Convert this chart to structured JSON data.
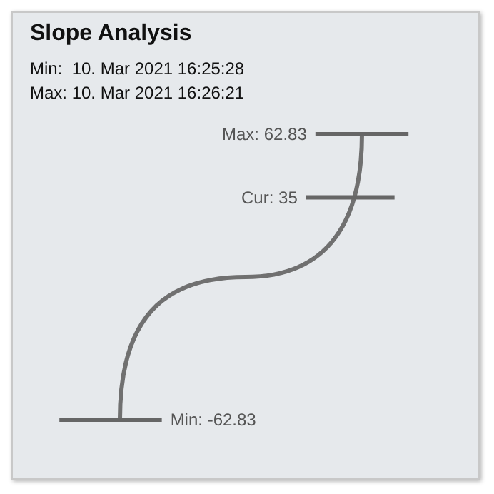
{
  "chart_data": {
    "type": "other",
    "title": "Slope Analysis",
    "annotations": [
      "Min:  10. Mar 2021 16:25:28",
      "Max: 10. Mar 2021 16:26:21"
    ],
    "values": [
      62.83,
      35,
      -62.83
    ],
    "value_labels": [
      "Max: 62.83",
      "Cur: 35",
      "Min: -62.83"
    ],
    "color": "#666666"
  }
}
